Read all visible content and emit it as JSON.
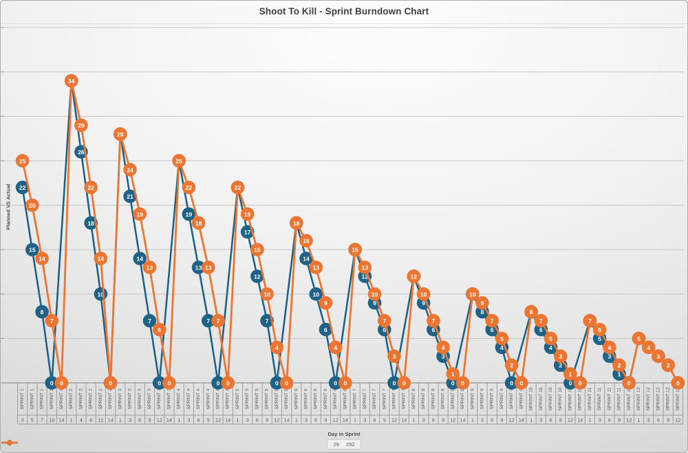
{
  "title": "Shoot To Kill - Sprint Burndown Chart",
  "y_axis_title": "Planned VS Actual",
  "x_axis_title": "Day in Sprint",
  "colors": {
    "planned": "#1E6387",
    "actual": "#EC7532",
    "grid": "#c6c6c6",
    "axis": "#7f7f7f",
    "table_line": "#9b9b9b",
    "tick_text": "#595959",
    "marker_label": "#ffffff"
  },
  "legend": [
    {
      "series": "planned",
      "label": "29"
    },
    {
      "series": "actual",
      "label": "292"
    }
  ],
  "chart_data": {
    "type": "line",
    "title": "Shoot To Kill - Sprint Burndown Chart",
    "xlabel": "Day in Sprint",
    "ylabel": "Planned VS Actual",
    "ylim": [
      0,
      40
    ],
    "grid_step": 5,
    "grid": true,
    "legend_position": "bottom",
    "series_names": {
      "planned": "29",
      "actual": "292"
    },
    "sprints": [
      {
        "name": "SPRINT 1",
        "days": [
          3,
          5,
          7,
          10,
          14
        ],
        "planned": [
          22,
          15,
          8,
          0,
          null
        ],
        "actual": [
          25,
          20,
          14,
          7,
          0
        ]
      },
      {
        "name": "SPRINT 2",
        "days": [
          1,
          4,
          8,
          11,
          14
        ],
        "planned": [
          34,
          26,
          18,
          10,
          0
        ],
        "actual": [
          34,
          29,
          22,
          14,
          0
        ]
      },
      {
        "name": "SPRINT 3",
        "days": [
          1,
          3,
          6,
          9,
          12,
          14
        ],
        "planned": [
          28,
          21,
          14,
          7,
          0,
          null
        ],
        "actual": [
          28,
          24,
          19,
          13,
          6,
          0
        ]
      },
      {
        "name": "SPRINT 4",
        "days": [
          1,
          3,
          6,
          9,
          12,
          14
        ],
        "planned": [
          25,
          19,
          13,
          7,
          0,
          null
        ],
        "actual": [
          25,
          22,
          18,
          13,
          7,
          0
        ]
      },
      {
        "name": "SPRINT 5",
        "days": [
          1,
          3,
          6,
          9,
          12,
          14
        ],
        "planned": [
          22,
          17,
          12,
          7,
          0,
          null
        ],
        "actual": [
          22,
          19,
          15,
          10,
          4,
          0
        ]
      },
      {
        "name": "SPRINT 6",
        "days": [
          1,
          3,
          6,
          9,
          12,
          14
        ],
        "planned": [
          18,
          14,
          10,
          6,
          0,
          null
        ],
        "actual": [
          18,
          16,
          13,
          9,
          4,
          0
        ]
      },
      {
        "name": "SPRINT 7",
        "days": [
          1,
          3,
          6,
          9,
          12,
          14
        ],
        "planned": [
          15,
          12,
          9,
          6,
          0,
          null
        ],
        "actual": [
          15,
          13,
          10,
          7,
          3,
          0
        ]
      },
      {
        "name": "SPRINT 8",
        "days": [
          1,
          3,
          6,
          9,
          12,
          14
        ],
        "planned": [
          12,
          9,
          6,
          3,
          0,
          null
        ],
        "actual": [
          12,
          10,
          7,
          4,
          1,
          0
        ]
      },
      {
        "name": "SPRINT 9",
        "days": [
          1,
          3,
          6,
          9,
          12,
          14
        ],
        "planned": [
          10,
          8,
          6,
          4,
          0,
          null
        ],
        "actual": [
          10,
          9,
          7,
          5,
          2,
          0
        ]
      },
      {
        "name": "SPRINT 10",
        "days": [
          1,
          3,
          6,
          9,
          12,
          14
        ],
        "planned": [
          8,
          6,
          4,
          2,
          0,
          null
        ],
        "actual": [
          8,
          7,
          5,
          3,
          1,
          0
        ]
      },
      {
        "name": "SPRINT 11",
        "days": [
          1,
          3,
          6,
          9,
          12
        ],
        "planned": [
          7,
          5,
          3,
          1,
          0
        ],
        "actual": [
          7,
          6,
          4,
          2,
          0
        ]
      },
      {
        "name": "SPRINT 12",
        "days": [
          1,
          3,
          6,
          9,
          12
        ],
        "planned": [
          5,
          4,
          3,
          2,
          0
        ],
        "actual": [
          5,
          4,
          3,
          2,
          0
        ]
      }
    ]
  }
}
